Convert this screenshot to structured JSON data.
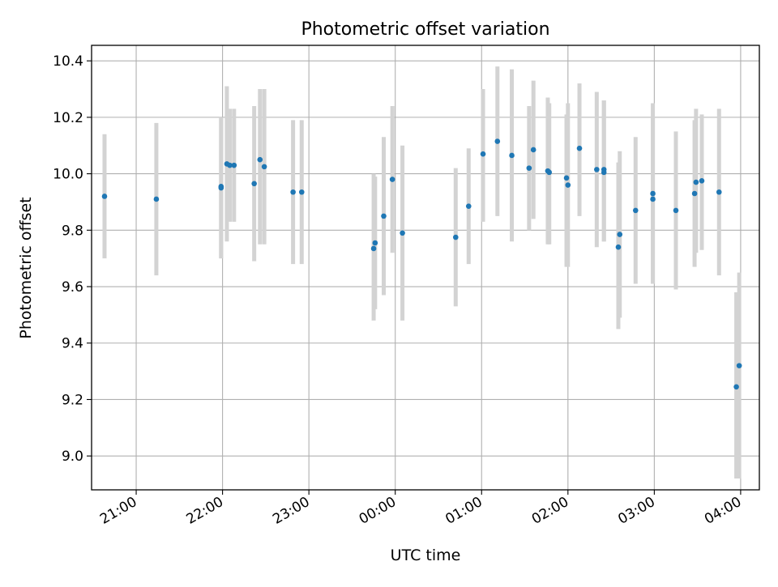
{
  "chart_data": {
    "type": "scatter",
    "title": "Photometric offset variation",
    "xlabel": "UTC time",
    "ylabel": "Photometric offset",
    "x_tick_labels": [
      "21:00",
      "22:00",
      "23:00",
      "00:00",
      "01:00",
      "02:00",
      "03:00",
      "04:00"
    ],
    "x_ticks_minutes_from_midnight": [
      -180,
      -120,
      -60,
      0,
      60,
      120,
      180,
      240
    ],
    "y_tick_labels": [
      "9.0",
      "9.2",
      "9.4",
      "9.6",
      "9.8",
      "10.0",
      "10.2",
      "10.4"
    ],
    "y_ticks": [
      9.0,
      9.2,
      9.4,
      9.6,
      9.8,
      10.0,
      10.2,
      10.4
    ],
    "xlim": [
      "20:29",
      "04:13"
    ],
    "ylim": [
      8.88,
      10.455
    ],
    "grid": true,
    "point_color": "#1f77b4",
    "errorbar_color": "#d3d3d3",
    "series": [
      {
        "x": [
          "20:38",
          "21:14",
          "21:59",
          "21:59",
          "22:03",
          "22:05",
          "22:08",
          "22:22",
          "22:26",
          "22:29",
          "22:49",
          "22:55",
          "23:45",
          "23:46",
          "23:52",
          "23:58",
          "00:05",
          "00:42",
          "00:51",
          "01:01",
          "01:11",
          "01:21",
          "01:33",
          "01:36",
          "01:46",
          "01:47",
          "01:59",
          "02:00",
          "02:08",
          "02:20",
          "02:25",
          "02:25",
          "02:35",
          "02:36",
          "02:47",
          "02:59",
          "02:59",
          "03:15",
          "03:28",
          "03:29",
          "03:33",
          "03:45",
          "03:57",
          "03:59"
        ],
        "y": [
          9.92,
          9.91,
          9.95,
          9.955,
          10.035,
          10.03,
          10.03,
          9.965,
          10.05,
          10.025,
          9.935,
          9.935,
          9.735,
          9.755,
          9.85,
          9.98,
          9.79,
          9.775,
          9.885,
          10.07,
          10.115,
          10.065,
          10.02,
          10.085,
          10.01,
          10.005,
          9.985,
          9.96,
          10.09,
          10.015,
          10.015,
          10.005,
          9.74,
          9.785,
          9.87,
          9.93,
          9.91,
          9.87,
          9.93,
          9.97,
          9.975,
          9.935,
          9.245,
          9.32
        ],
        "yerr_low": [
          9.7,
          9.64,
          9.7,
          9.7,
          9.76,
          9.83,
          9.83,
          9.69,
          9.75,
          9.75,
          9.68,
          9.68,
          9.48,
          9.52,
          9.57,
          9.72,
          9.48,
          9.53,
          9.68,
          9.83,
          9.85,
          9.76,
          9.8,
          9.84,
          9.75,
          9.75,
          9.67,
          9.67,
          9.85,
          9.74,
          9.76,
          9.76,
          9.45,
          9.49,
          9.61,
          9.61,
          9.61,
          9.59,
          9.67,
          9.72,
          9.73,
          9.64,
          8.92,
          8.92
        ],
        "yerr_high": [
          10.14,
          10.18,
          10.2,
          10.2,
          10.31,
          10.23,
          10.23,
          10.24,
          10.3,
          10.3,
          10.19,
          10.19,
          10.0,
          9.99,
          10.13,
          10.24,
          10.1,
          10.02,
          10.09,
          10.3,
          10.38,
          10.37,
          10.24,
          10.33,
          10.27,
          10.25,
          10.21,
          10.25,
          10.32,
          10.29,
          10.26,
          10.26,
          10.04,
          10.08,
          10.13,
          10.25,
          10.2,
          10.15,
          10.19,
          10.23,
          10.21,
          10.23,
          9.58,
          9.65
        ]
      }
    ]
  }
}
